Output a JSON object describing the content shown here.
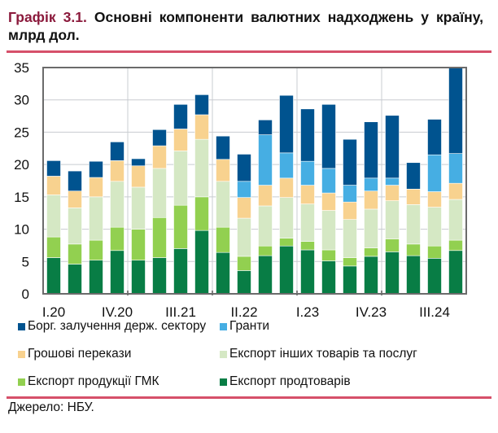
{
  "title": {
    "number": "Графік 3.1.",
    "text": "Основні компоненти валютних надходжень у країну, млрд дол."
  },
  "source": "Джерело: НБУ.",
  "chart_data": {
    "type": "bar",
    "stacked": true,
    "categories": [
      "I.20",
      "II.20",
      "III.20",
      "IV.20",
      "I.21",
      "II.21",
      "III.21",
      "IV.21",
      "I.22",
      "II.22",
      "III.22",
      "IV.22",
      "I.23",
      "II.23",
      "III.23",
      "IV.23",
      "I.24",
      "II.24",
      "III.24",
      "IV.24"
    ],
    "tick_labels": [
      "I.20",
      "",
      "",
      "IV.20",
      "",
      "",
      "III.21",
      "",
      "",
      "II.22",
      "",
      "",
      "I.23",
      "",
      "",
      "IV.23",
      "",
      "",
      "III.24",
      ""
    ],
    "ylim": [
      0,
      35
    ],
    "yticks": [
      0,
      5,
      10,
      15,
      20,
      25,
      30,
      35
    ],
    "grid": true,
    "legend_position": "bottom",
    "series": [
      {
        "name": "Експорт продтоварів",
        "color": "#087D45",
        "values": [
          5.6,
          4.6,
          5.2,
          6.7,
          5.2,
          5.6,
          7.0,
          9.8,
          6.4,
          3.6,
          5.9,
          7.4,
          6.8,
          5.1,
          4.3,
          5.8,
          6.5,
          5.9,
          5.5,
          6.7
        ]
      },
      {
        "name": "Експорт продукції ГМК",
        "color": "#92D050",
        "values": [
          3.2,
          3.1,
          3.1,
          3.6,
          4.8,
          6.2,
          6.7,
          5.2,
          3.9,
          2.2,
          1.5,
          1.2,
          1.3,
          1.7,
          1.3,
          1.3,
          2.0,
          1.8,
          1.9,
          1.6
        ]
      },
      {
        "name": "Експорт інших товарів та послуг",
        "color": "#D5E8C4",
        "values": [
          6.5,
          5.6,
          6.7,
          7.1,
          6.5,
          7.6,
          8.4,
          8.9,
          7.1,
          5.9,
          6.2,
          6.3,
          5.8,
          6.1,
          5.9,
          6.0,
          5.9,
          6.1,
          6.0,
          6.3
        ]
      },
      {
        "name": "Грошові перекази",
        "color": "#F8D28F",
        "values": [
          2.9,
          2.6,
          3.0,
          3.2,
          3.3,
          3.5,
          3.4,
          3.8,
          3.4,
          3.2,
          3.2,
          3.0,
          2.9,
          2.7,
          2.7,
          2.8,
          2.4,
          2.4,
          2.4,
          2.5
        ]
      },
      {
        "name": "Гранти",
        "color": "#46AEE3",
        "values": [
          0,
          0,
          0,
          0,
          0,
          0,
          0,
          0,
          0,
          2.5,
          7.8,
          3.9,
          3.7,
          3.8,
          2.6,
          2.0,
          1.1,
          0,
          5.7,
          4.6
        ]
      },
      {
        "name": "Борг. залучення держ. сектору",
        "color": "#00538F",
        "values": [
          2.4,
          3.1,
          2.5,
          2.9,
          1.1,
          2.5,
          3.8,
          3.1,
          3.6,
          4.2,
          2.3,
          8.9,
          8.1,
          9.9,
          7.1,
          8.7,
          9.7,
          4.1,
          5.5,
          13.3
        ]
      }
    ]
  }
}
